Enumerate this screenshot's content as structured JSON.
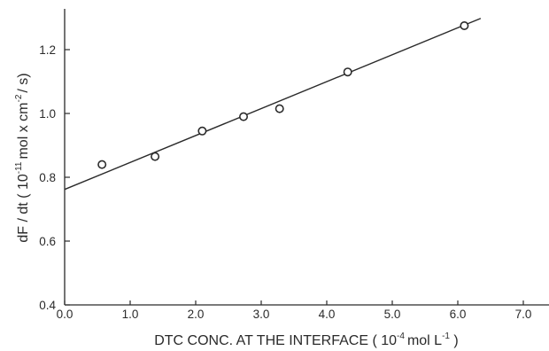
{
  "chart_data": {
    "type": "scatter",
    "title": "",
    "xlabel": {
      "prefix": "DTC CONC. AT THE INTERFACE  ( 10",
      "sup1": "-4",
      "mid": "mol L",
      "sup2": "-1",
      "suffix": " )"
    },
    "ylabel": {
      "prefix": "dF / dt  ( 10",
      "sup1": "-11",
      "mid": "mol x cm",
      "sup2": "-2",
      "suffix": "/ s)"
    },
    "xlim": [
      0.0,
      7.0
    ],
    "ylim": [
      0.4,
      1.33
    ],
    "x_ticks": [
      "0.0",
      "1.0",
      "2.0",
      "3.0",
      "4.0",
      "5.0",
      "6.0",
      "7.0"
    ],
    "y_ticks": [
      "0.4",
      "0.6",
      "0.8",
      "1.0",
      "1.2"
    ],
    "x_tick_values": [
      0,
      1,
      2,
      3,
      4,
      5,
      6,
      7
    ],
    "y_tick_values": [
      0.4,
      0.6,
      0.8,
      1.0,
      1.2
    ],
    "grid": false,
    "series": [
      {
        "marker": "open-circle",
        "x": [
          0.57,
          1.38,
          2.1,
          2.73,
          3.28,
          4.32,
          6.1
        ],
        "y": [
          0.84,
          0.865,
          0.945,
          0.99,
          1.015,
          1.13,
          1.275
        ]
      }
    ],
    "fit_line": {
      "x": [
        0.0,
        6.35
      ],
      "y": [
        0.762,
        1.298
      ]
    },
    "colors": {
      "ink": "#2a2a2a",
      "background": "#ffffff"
    }
  }
}
